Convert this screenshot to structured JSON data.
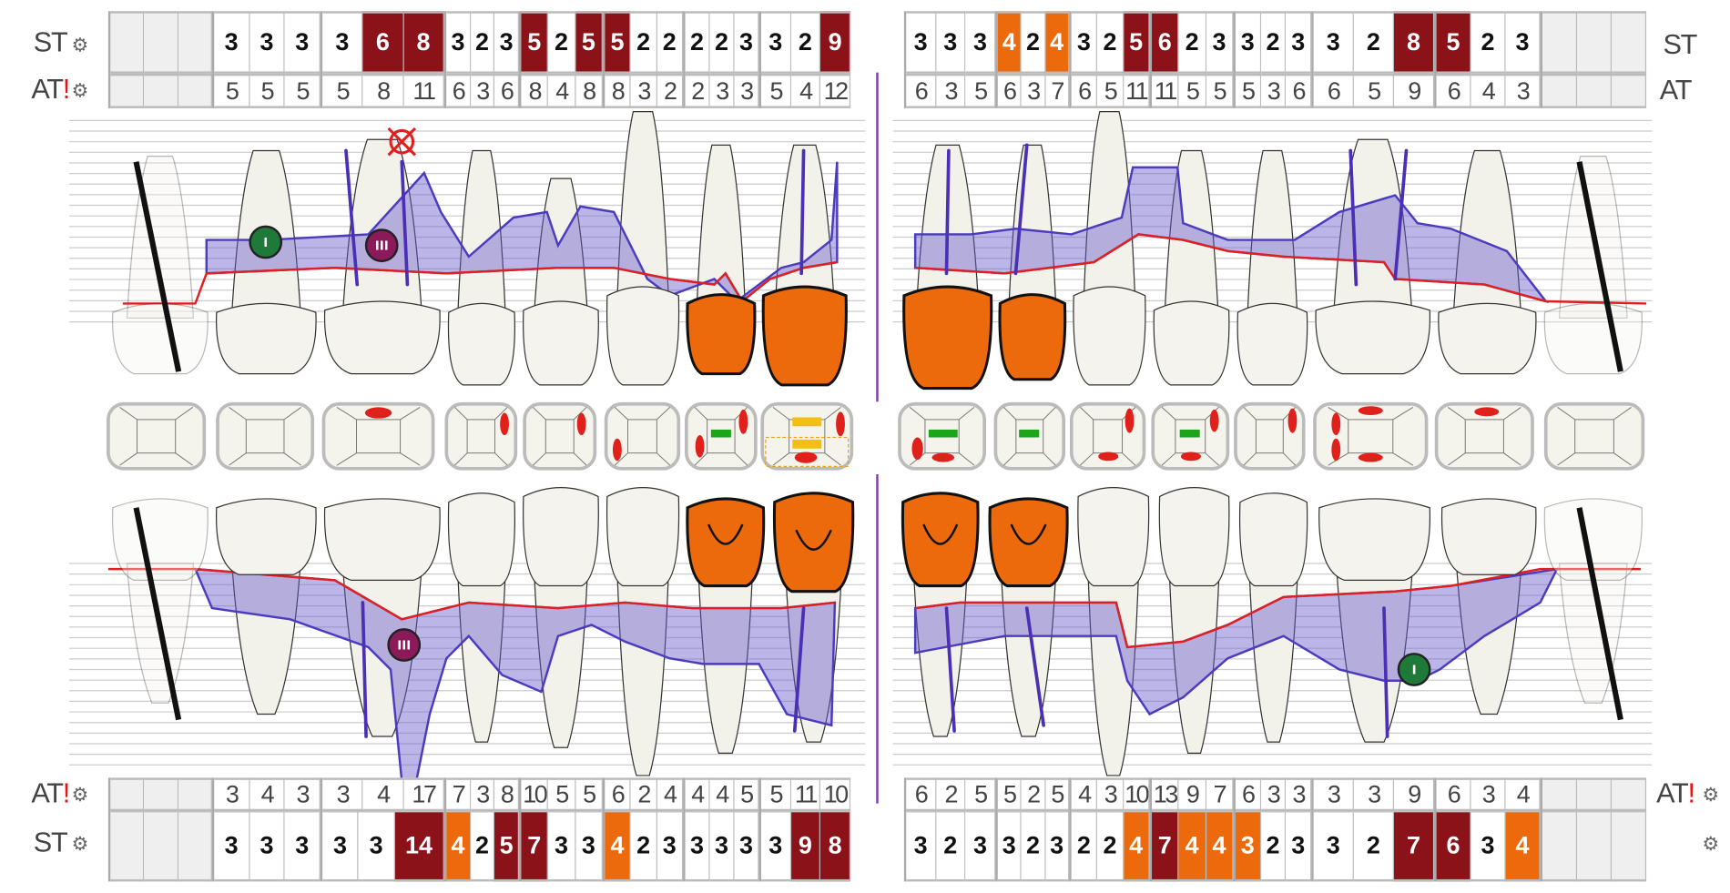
{
  "labels": {
    "st": "ST",
    "at": "AT",
    "alert": "!"
  },
  "colors": {
    "severe": "#8b1219",
    "moderate": "#ec6a0c",
    "attachment_band": "#6a5acd",
    "gingival_line": "#e02020",
    "furcation_1": "#1f7a3a",
    "furcation_3": "#8a1a5a"
  },
  "upper_left": {
    "st": [
      "3",
      "3",
      "3",
      "3",
      "6",
      "8",
      "3",
      "2",
      "3",
      "5",
      "2",
      "5",
      "5",
      "2",
      "2",
      "2",
      "2",
      "3",
      "3",
      "2",
      "9"
    ],
    "st_flags": "nnnnrrnnnrnrrnnnnnnnr",
    "at": [
      "5",
      "5",
      "5",
      "5",
      "8",
      "11",
      "6",
      "3",
      "6",
      "8",
      "4",
      "8",
      "8",
      "3",
      "2",
      "2",
      "3",
      "3",
      "5",
      "4",
      "12"
    ]
  },
  "upper_right": {
    "st": [
      "3",
      "3",
      "3",
      "4",
      "2",
      "4",
      "3",
      "2",
      "5",
      "6",
      "2",
      "3",
      "3",
      "2",
      "3",
      "3",
      "2",
      "8",
      "5",
      "2",
      "3"
    ],
    "st_flags": "nnnononnrrnnnnnnnrrnn",
    "at": [
      "6",
      "3",
      "5",
      "6",
      "3",
      "7",
      "6",
      "5",
      "11",
      "11",
      "5",
      "5",
      "5",
      "3",
      "6",
      "6",
      "5",
      "9",
      "6",
      "4",
      "3"
    ]
  },
  "lower_left": {
    "st": [
      "3",
      "3",
      "3",
      "3",
      "3",
      "14",
      "4",
      "2",
      "5",
      "7",
      "3",
      "3",
      "4",
      "2",
      "3",
      "3",
      "3",
      "3",
      "3",
      "9",
      "8"
    ],
    "st_flags": "nnnnnronrrnnonnnnnnrr",
    "at": [
      "3",
      "4",
      "3",
      "3",
      "4",
      "17",
      "7",
      "3",
      "8",
      "10",
      "5",
      "5",
      "6",
      "2",
      "4",
      "4",
      "4",
      "5",
      "5",
      "11",
      "10"
    ]
  },
  "lower_right": {
    "st": [
      "3",
      "2",
      "3",
      "3",
      "2",
      "3",
      "2",
      "2",
      "4",
      "7",
      "4",
      "4",
      "3",
      "2",
      "3",
      "3",
      "2",
      "7",
      "6",
      "3",
      "4"
    ],
    "st_flags": "nnnnnnnnorooonnnnrrno",
    "at": [
      "6",
      "2",
      "5",
      "5",
      "2",
      "5",
      "4",
      "3",
      "10",
      "13",
      "9",
      "7",
      "6",
      "3",
      "3",
      "3",
      "3",
      "9",
      "6",
      "3",
      "4"
    ]
  },
  "markers": {
    "furcation_grade_1": "I",
    "furcation_grade_3": "III"
  }
}
